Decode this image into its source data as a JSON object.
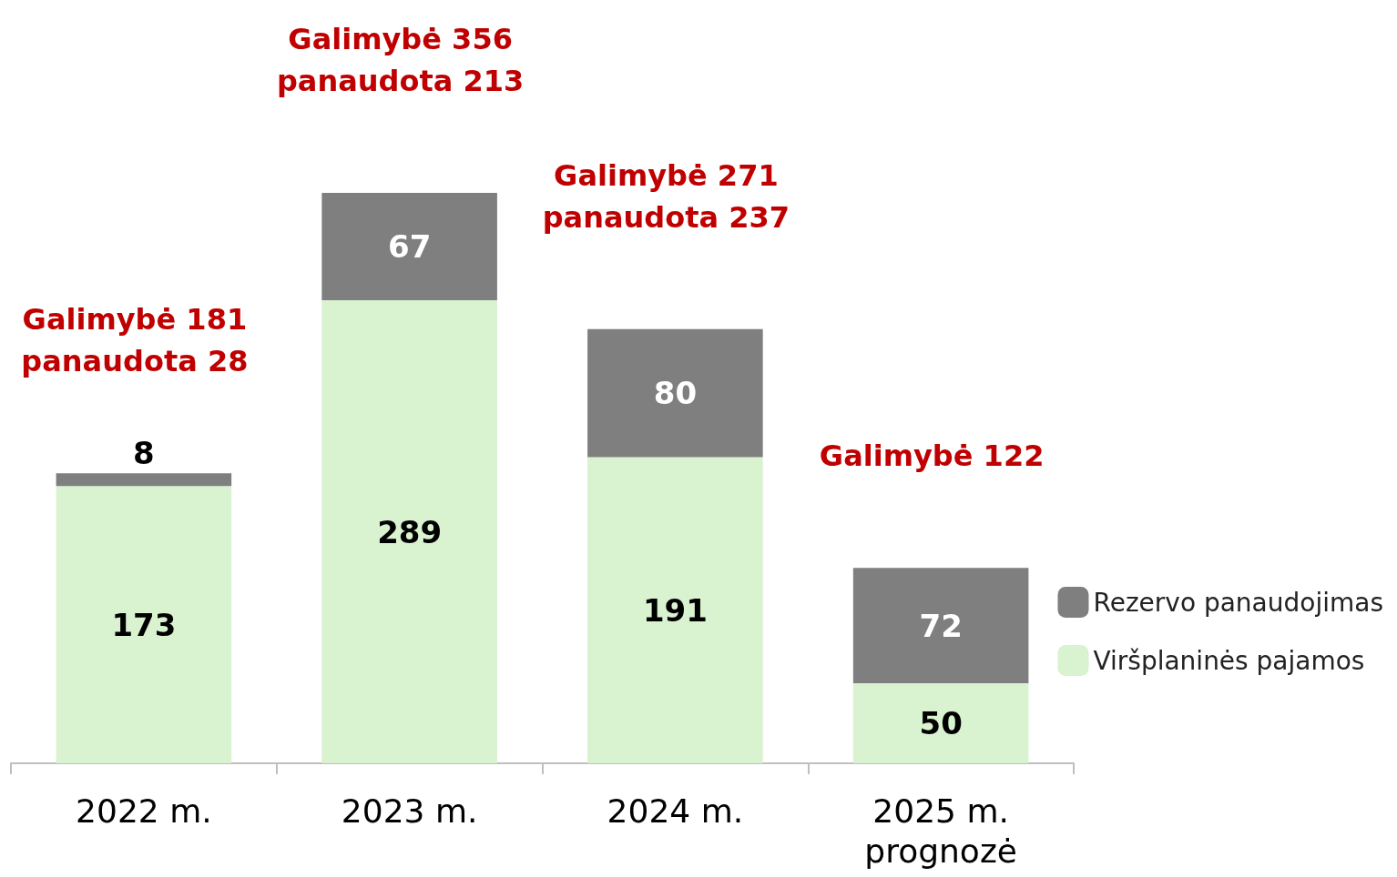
{
  "chart_data": {
    "type": "bar",
    "stacked": true,
    "data_labels": true,
    "legend": "right",
    "categories": [
      "2022 m.",
      "2023 m.",
      "2024 m.",
      "2025 m.\nprognozė"
    ],
    "series": [
      {
        "name": "Viršplaninės pajamos",
        "color": "#d9f2d0",
        "values": [
          173,
          289,
          191,
          50
        ]
      },
      {
        "name": "Rezervo panaudojimas",
        "color": "#7f7f7f",
        "values": [
          8,
          67,
          80,
          72
        ]
      }
    ],
    "annotations": [
      "Galimybė 181\npanaudota 28",
      "Galimybė 356\npanaudota 213",
      "Galimybė 271\npanaudota 237",
      "Galimybė 122"
    ]
  }
}
